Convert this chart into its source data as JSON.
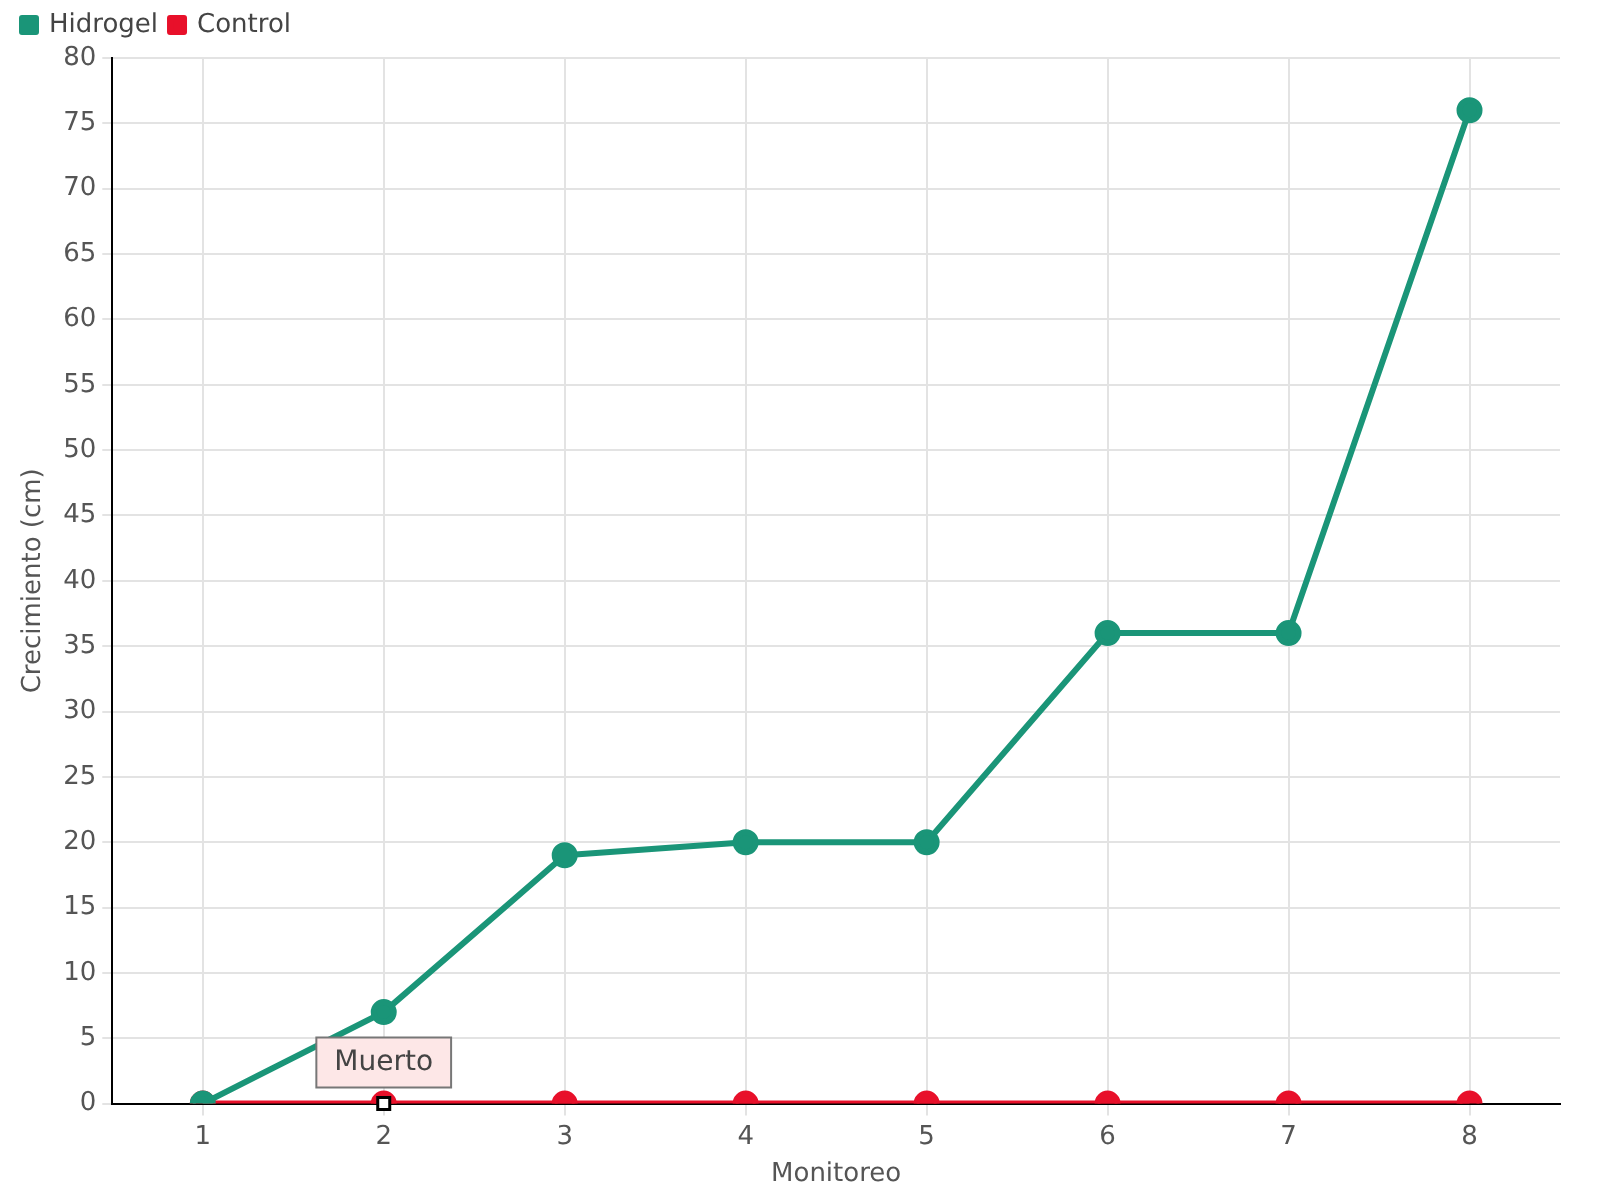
{
  "chart_data": {
    "type": "line",
    "xlabel": "Monitoreo",
    "ylabel": "Crecimiento (cm)",
    "categories": [
      "1",
      "2",
      "3",
      "4",
      "5",
      "6",
      "7",
      "8"
    ],
    "series": [
      {
        "name": "Hidrogel",
        "color": "#1a9578",
        "values": [
          0,
          7,
          19,
          20,
          20,
          36,
          36,
          76
        ]
      },
      {
        "name": "Control",
        "color": "#e8102a",
        "values": [
          0,
          0,
          0,
          0,
          0,
          0,
          0,
          0
        ]
      }
    ],
    "ylim": [
      0,
      80
    ],
    "yticks": [
      0,
      5,
      10,
      15,
      20,
      25,
      30,
      35,
      40,
      45,
      50,
      55,
      60,
      65,
      70,
      75,
      80
    ],
    "grid": true,
    "legend": "top left",
    "marker": "circle",
    "line_style": "solid",
    "annotations": [
      {
        "text": "Muerto",
        "x": "2",
        "y": 0
      }
    ]
  }
}
